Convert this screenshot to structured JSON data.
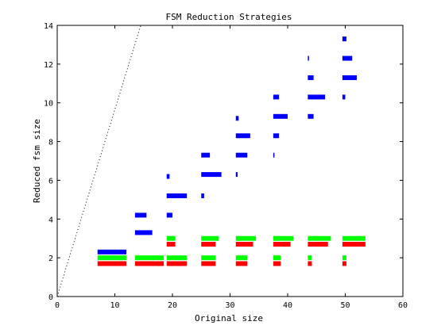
{
  "chart_data": {
    "type": "bar",
    "title": "FSM Reduction Strategies",
    "xlabel": "Original size",
    "ylabel": "Reduced fsm size",
    "xlim": [
      0,
      60
    ],
    "ylim": [
      0,
      14
    ],
    "xticks": [
      0,
      10,
      20,
      30,
      40,
      50,
      60
    ],
    "yticks": [
      0,
      2,
      4,
      6,
      8,
      10,
      12,
      14
    ],
    "grid": false,
    "legend": "none",
    "reference_line": {
      "x": [
        0,
        14.5
      ],
      "y": [
        0,
        14
      ],
      "style": "dotted",
      "color": "#000000"
    },
    "colors": {
      "blue": "#0000ff",
      "green": "#00ff00",
      "red": "#ff0000"
    },
    "series": [
      {
        "color": "blue",
        "segments": [
          {
            "x0": 7,
            "x1": 12,
            "y": 2.3
          },
          {
            "x0": 13.5,
            "x1": 15.5,
            "y": 4.2
          },
          {
            "x0": 13.5,
            "x1": 16.5,
            "y": 3.3
          },
          {
            "x0": 19,
            "x1": 19.5,
            "y": 6.2
          },
          {
            "x0": 19,
            "x1": 22.5,
            "y": 5.2
          },
          {
            "x0": 19,
            "x1": 20,
            "y": 4.2
          },
          {
            "x0": 25,
            "x1": 26.5,
            "y": 7.3
          },
          {
            "x0": 25,
            "x1": 28.5,
            "y": 6.3
          },
          {
            "x0": 25,
            "x1": 25.5,
            "y": 5.2
          },
          {
            "x0": 31,
            "x1": 31.5,
            "y": 9.2
          },
          {
            "x0": 31,
            "x1": 33.5,
            "y": 8.3
          },
          {
            "x0": 31,
            "x1": 33,
            "y": 7.3
          },
          {
            "x0": 31,
            "x1": 31.3,
            "y": 6.3
          },
          {
            "x0": 37.5,
            "x1": 38.5,
            "y": 10.3
          },
          {
            "x0": 37.5,
            "x1": 40,
            "y": 9.3
          },
          {
            "x0": 37.5,
            "x1": 38.5,
            "y": 8.3
          },
          {
            "x0": 37.5,
            "x1": 37.7,
            "y": 7.3
          },
          {
            "x0": 43.5,
            "x1": 43.7,
            "y": 12.3
          },
          {
            "x0": 43.5,
            "x1": 44.5,
            "y": 11.3
          },
          {
            "x0": 43.5,
            "x1": 46.5,
            "y": 10.3
          },
          {
            "x0": 43.5,
            "x1": 44.5,
            "y": 9.3
          },
          {
            "x0": 49.5,
            "x1": 50.2,
            "y": 13.3
          },
          {
            "x0": 49.5,
            "x1": 51.2,
            "y": 12.3
          },
          {
            "x0": 49.5,
            "x1": 52,
            "y": 11.3
          },
          {
            "x0": 49.5,
            "x1": 50,
            "y": 10.3
          }
        ]
      },
      {
        "color": "green",
        "segments": [
          {
            "x0": 7,
            "x1": 12,
            "y": 2.0
          },
          {
            "x0": 13.5,
            "x1": 18.5,
            "y": 2.0
          },
          {
            "x0": 19,
            "x1": 22.5,
            "y": 2.0
          },
          {
            "x0": 19,
            "x1": 20.5,
            "y": 3.0
          },
          {
            "x0": 25,
            "x1": 27.5,
            "y": 2.0
          },
          {
            "x0": 25,
            "x1": 28,
            "y": 3.0
          },
          {
            "x0": 31,
            "x1": 33,
            "y": 2.0
          },
          {
            "x0": 31,
            "x1": 34.5,
            "y": 3.0
          },
          {
            "x0": 37.5,
            "x1": 38.8,
            "y": 2.0
          },
          {
            "x0": 37.5,
            "x1": 41,
            "y": 3.0
          },
          {
            "x0": 43.5,
            "x1": 44.2,
            "y": 2.0
          },
          {
            "x0": 43.5,
            "x1": 47.5,
            "y": 3.0
          },
          {
            "x0": 49.5,
            "x1": 50.2,
            "y": 2.0
          },
          {
            "x0": 49.5,
            "x1": 53.5,
            "y": 3.0
          }
        ]
      },
      {
        "color": "red",
        "segments": [
          {
            "x0": 7,
            "x1": 12,
            "y": 1.7
          },
          {
            "x0": 13.5,
            "x1": 18.5,
            "y": 1.7
          },
          {
            "x0": 19,
            "x1": 22.5,
            "y": 1.7
          },
          {
            "x0": 19,
            "x1": 20.5,
            "y": 2.7
          },
          {
            "x0": 25,
            "x1": 27.5,
            "y": 1.7
          },
          {
            "x0": 25,
            "x1": 27.5,
            "y": 2.7
          },
          {
            "x0": 31,
            "x1": 33,
            "y": 1.7
          },
          {
            "x0": 31,
            "x1": 34,
            "y": 2.7
          },
          {
            "x0": 37.5,
            "x1": 38.8,
            "y": 1.7
          },
          {
            "x0": 37.5,
            "x1": 40.5,
            "y": 2.7
          },
          {
            "x0": 43.5,
            "x1": 44.2,
            "y": 1.7
          },
          {
            "x0": 43.5,
            "x1": 47,
            "y": 2.7
          },
          {
            "x0": 49.5,
            "x1": 50.2,
            "y": 1.7
          },
          {
            "x0": 49.5,
            "x1": 53.5,
            "y": 2.7
          }
        ]
      }
    ]
  }
}
